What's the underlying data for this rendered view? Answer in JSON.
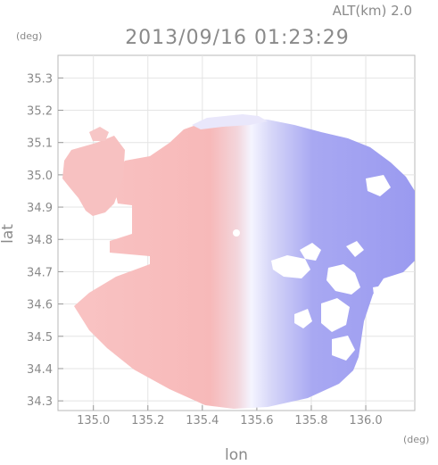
{
  "header": {
    "alt_label": "ALT(km) 2.0",
    "timestamp": "2013/09/16 01:23:29"
  },
  "axes": {
    "x_label": "lon",
    "y_label": "lat",
    "x_unit": "(deg)",
    "y_unit": "(deg)",
    "x_range": [
      134.87,
      136.18
    ],
    "y_range": [
      34.27,
      35.37
    ],
    "x_ticks": [
      "135.0",
      "135.2",
      "135.4",
      "135.6",
      "135.8",
      "136.0"
    ],
    "x_tick_values": [
      135.0,
      135.2,
      135.4,
      135.6,
      135.8,
      136.0
    ],
    "y_ticks": [
      "35.3",
      "35.2",
      "35.1",
      "35.0",
      "34.9",
      "34.8",
      "34.7",
      "34.6",
      "34.5",
      "34.4",
      "34.3"
    ],
    "y_tick_values": [
      35.3,
      35.2,
      35.1,
      35.0,
      34.9,
      34.8,
      34.7,
      34.6,
      34.5,
      34.4,
      34.3
    ],
    "grid": true
  },
  "radar": {
    "center_lon": 135.52,
    "center_lat": 34.815,
    "color_toward": "#f7b7b7",
    "color_away": "#8c8cf0",
    "color_neutral": "#f4f4ff"
  }
}
